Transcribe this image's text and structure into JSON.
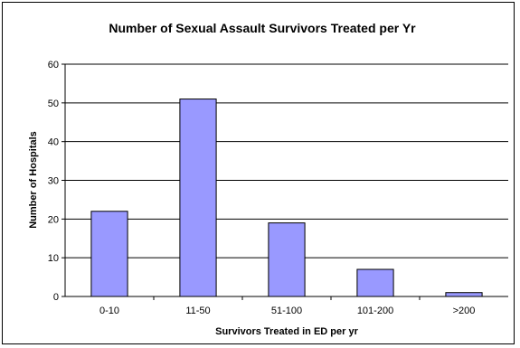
{
  "chart_data": {
    "type": "bar",
    "title": "Number of Sexual Assault Survivors Treated per Yr",
    "xlabel": "Survivors Treated in ED per yr",
    "ylabel": "Number of Hospitals",
    "categories": [
      "0-10",
      "11-50",
      "51-100",
      "101-200",
      ">200"
    ],
    "values": [
      22,
      51,
      19,
      7,
      1
    ],
    "ylim": [
      0,
      60
    ],
    "yticks": [
      "0",
      "10",
      "20",
      "30",
      "40",
      "50",
      "60"
    ],
    "grid": true,
    "legend": "none",
    "bar_color": "#9999ff",
    "bar_outline": "#000000"
  }
}
